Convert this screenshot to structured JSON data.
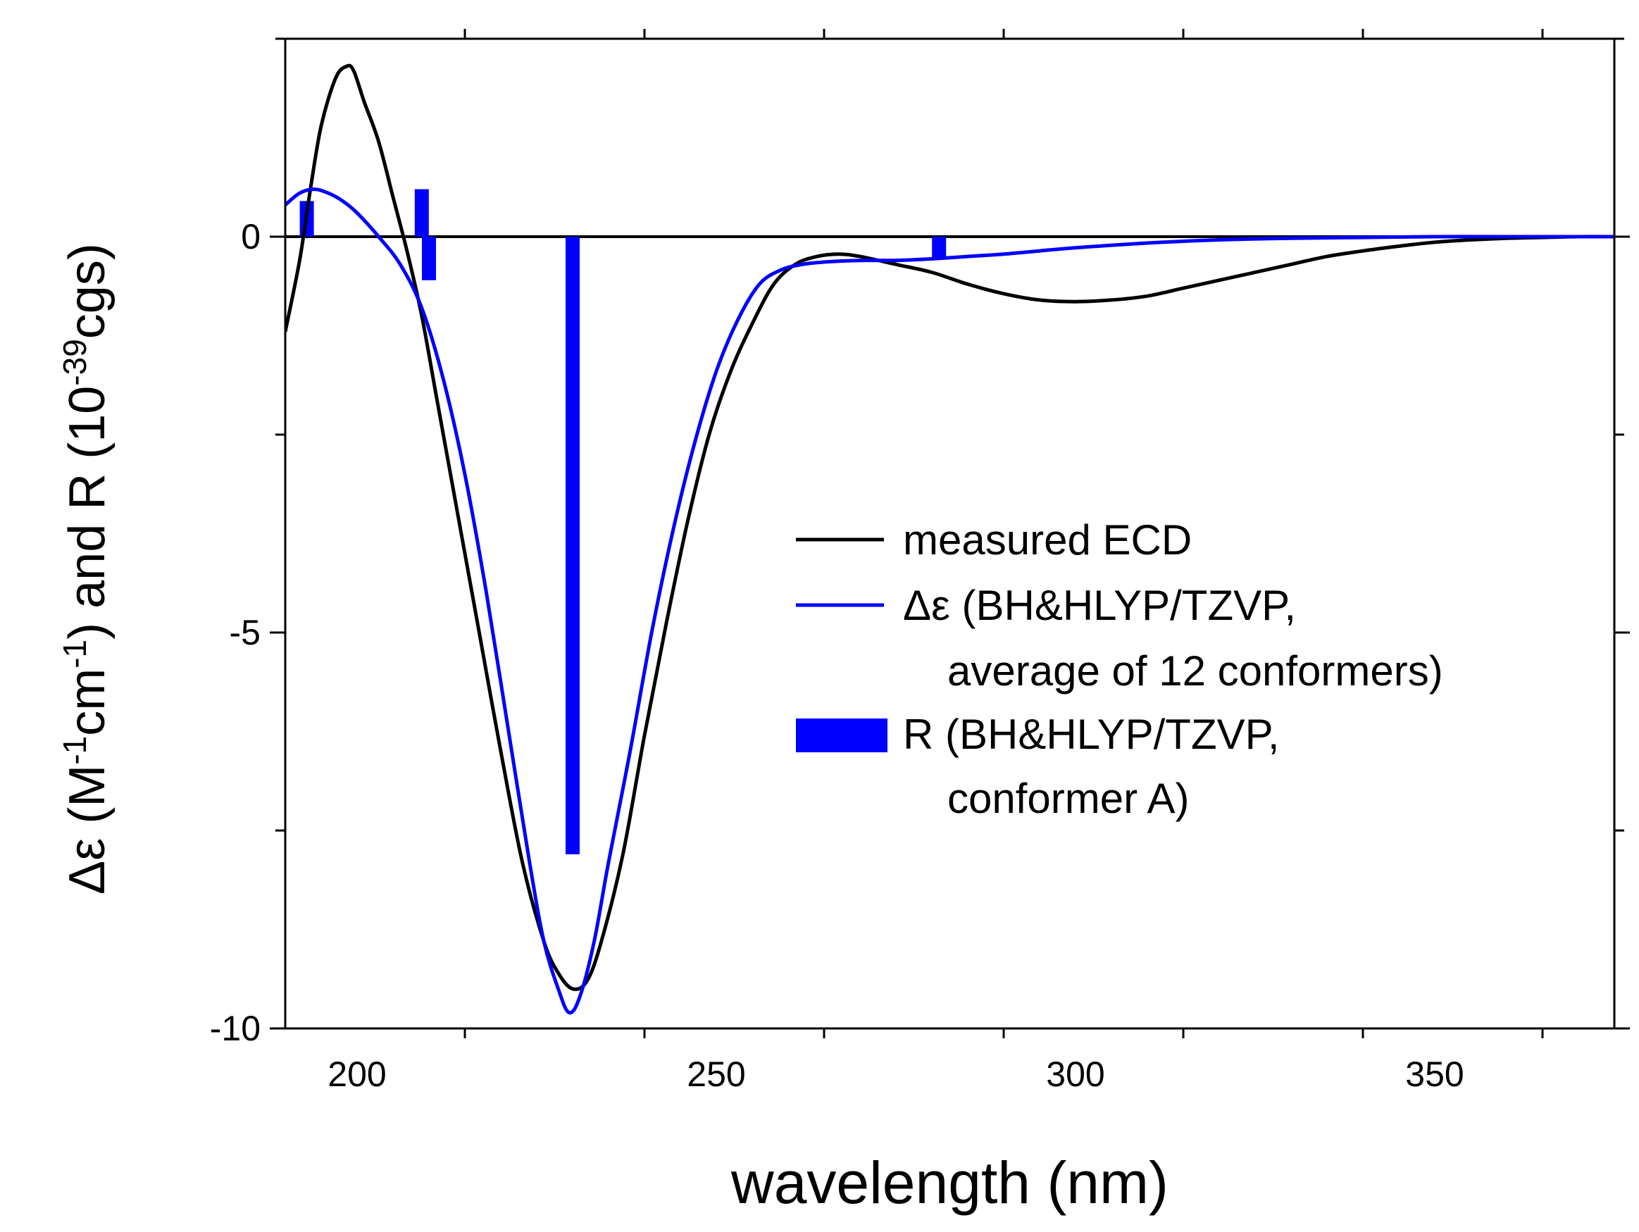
{
  "chart_data": {
    "type": "line",
    "title": "",
    "xlabel": "wavelength (nm)",
    "ylabel": {
      "main": "Δε (M",
      "sup1": "-1",
      "mid1": "cm",
      "sup2": "-1",
      "mid2": ") and R (10",
      "sup3": "-39",
      "end": "cgs)"
    },
    "xlim": [
      190,
      375
    ],
    "ylim": [
      -10,
      2.5
    ],
    "x_ticks": [
      200,
      250,
      300,
      350
    ],
    "x_tick_labels": [
      "200",
      "250",
      "300",
      "350"
    ],
    "y_ticks": [
      0,
      -5,
      -10
    ],
    "y_tick_labels": [
      "0",
      "-5",
      "-10"
    ],
    "zero_line": true,
    "legend_position": "right-center",
    "colors": {
      "measured": "#000000",
      "calculated": "#0000ff",
      "sticks": "#0000ff"
    },
    "series": [
      {
        "name": "measured ECD",
        "type": "line",
        "x": [
          190,
          192,
          193.5,
          195,
          197,
          198.5,
          199.5,
          201,
          203,
          205,
          207,
          209,
          211,
          213,
          215,
          217,
          220,
          223,
          226,
          228,
          230,
          232,
          234,
          237,
          240,
          243,
          246,
          249,
          252,
          255,
          258,
          261,
          264,
          267,
          270,
          275,
          280,
          285,
          290,
          295,
          300,
          305,
          310,
          315,
          320,
          325,
          330,
          335,
          340,
          345,
          350,
          355,
          360,
          365,
          370,
          375
        ],
        "y": [
          -1.2,
          -0.3,
          0.6,
          1.4,
          2.0,
          2.15,
          2.1,
          1.7,
          1.2,
          0.5,
          -0.2,
          -1.0,
          -2.0,
          -3.0,
          -4.0,
          -5.0,
          -6.5,
          -7.9,
          -8.9,
          -9.3,
          -9.5,
          -9.4,
          -8.9,
          -7.8,
          -6.3,
          -4.9,
          -3.6,
          -2.5,
          -1.7,
          -1.1,
          -0.6,
          -0.35,
          -0.25,
          -0.22,
          -0.25,
          -0.35,
          -0.45,
          -0.6,
          -0.72,
          -0.8,
          -0.82,
          -0.8,
          -0.75,
          -0.65,
          -0.55,
          -0.45,
          -0.35,
          -0.25,
          -0.18,
          -0.12,
          -0.07,
          -0.04,
          -0.02,
          -0.01,
          0,
          0
        ]
      },
      {
        "name": "Δε (BH&HLYP/TZVP, average of 12 conformers)",
        "legend_lines": [
          "Δε (BH&HLYP/TZVP,",
          "average of 12 conformers)"
        ],
        "type": "line",
        "x": [
          190,
          192,
          194,
          196,
          198,
          200,
          203,
          206,
          209,
          212,
          215,
          218,
          221,
          224,
          226,
          228,
          229.5,
          231,
          233,
          235,
          238,
          241,
          244,
          247,
          250,
          253,
          256,
          259,
          262,
          265,
          270,
          275,
          280,
          285,
          290,
          295,
          300,
          310,
          320,
          330,
          340,
          350,
          360,
          375
        ],
        "y": [
          0.4,
          0.55,
          0.6,
          0.55,
          0.45,
          0.3,
          0.0,
          -0.35,
          -0.9,
          -1.8,
          -3.0,
          -4.5,
          -6.2,
          -7.9,
          -8.9,
          -9.5,
          -9.8,
          -9.6,
          -8.9,
          -7.9,
          -6.5,
          -5.0,
          -3.7,
          -2.6,
          -1.7,
          -1.05,
          -0.6,
          -0.42,
          -0.35,
          -0.32,
          -0.3,
          -0.3,
          -0.28,
          -0.25,
          -0.22,
          -0.18,
          -0.14,
          -0.08,
          -0.04,
          -0.02,
          -0.01,
          0,
          0,
          0
        ]
      },
      {
        "name": "R (BH&HLYP/TZVP, conformer A)",
        "legend_lines": [
          "R (BH&HLYP/TZVP,",
          "conformer A)"
        ],
        "type": "bar",
        "x": [
          193,
          209,
          210,
          230,
          281
        ],
        "y": [
          0.45,
          0.6,
          -0.55,
          -7.8,
          -0.28
        ]
      }
    ]
  }
}
